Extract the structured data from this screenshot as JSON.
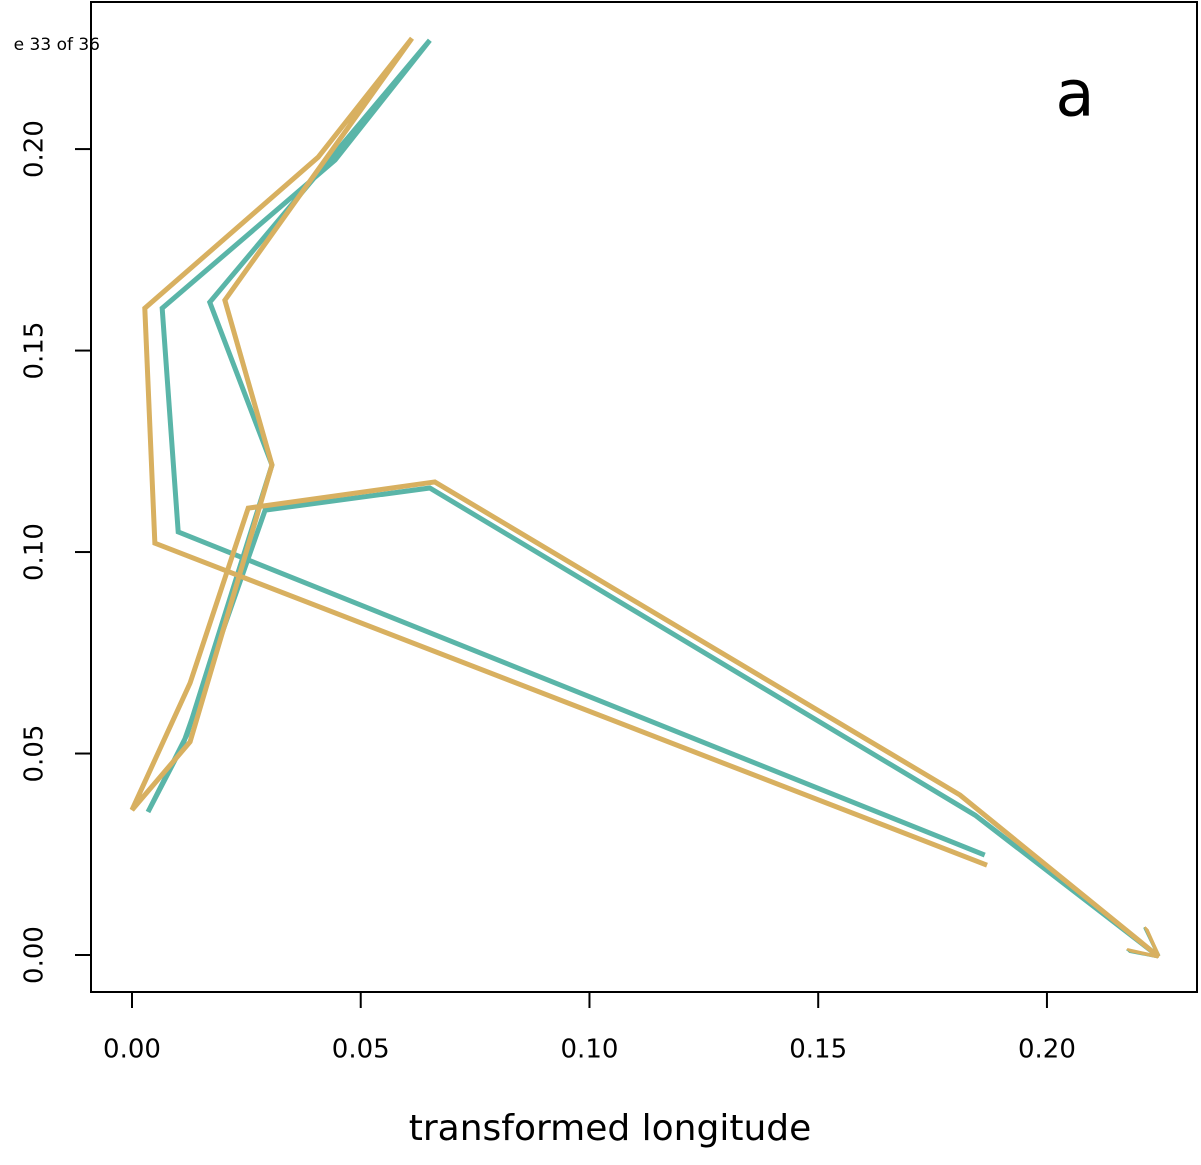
{
  "chart_data": {
    "type": "line",
    "page_note": "e 33 of 36",
    "annotation": "a",
    "xlabel": "transformed longitude",
    "xlim": [
      -0.00896,
      0.2328
    ],
    "ylim": [
      -0.00918,
      0.2365
    ],
    "xticks": [
      {
        "value": 0,
        "label": "0.00"
      },
      {
        "value": 0.05,
        "label": "0.05"
      },
      {
        "value": 0.1,
        "label": "0.10"
      },
      {
        "value": 0.15,
        "label": "0.15"
      },
      {
        "value": 0.2,
        "label": "0.20"
      }
    ],
    "yticks": [
      {
        "value": 0,
        "label": "0.00"
      },
      {
        "value": 0.05,
        "label": "0.05"
      },
      {
        "value": 0.1,
        "label": "0.10"
      },
      {
        "value": 0.15,
        "label": "0.15"
      },
      {
        "value": 0.2,
        "label": "0.20"
      }
    ],
    "arrow": true,
    "series": [
      {
        "color": "#5ab5a8",
        "x": [
          0.1864,
          0.0101,
          0.0066,
          0.0444,
          0.0651,
          0.017,
          0.0306,
          0.012,
          0.0035,
          0.0111,
          0.0291,
          0.0651,
          0.1843,
          0.224
        ],
        "values": [
          0.0248,
          0.105,
          0.1605,
          0.1973,
          0.227,
          0.162,
          0.1216,
          0.0546,
          0.0355,
          0.0521,
          0.1104,
          0.1159,
          0.0347,
          0.0
        ]
      },
      {
        "color": "#d8b060",
        "x": [
          0.1869,
          0.005,
          0.0028,
          0.0407,
          0.0612,
          0.0203,
          0.0306,
          0.0127,
          0.0,
          0.0127,
          0.0254,
          0.0662,
          0.181,
          0.224
        ],
        "values": [
          0.0223,
          0.1022,
          0.1605,
          0.198,
          0.2275,
          0.1625,
          0.1216,
          0.0529,
          0.036,
          0.0675,
          0.1109,
          0.1174,
          0.0397,
          0.0
        ]
      }
    ]
  }
}
